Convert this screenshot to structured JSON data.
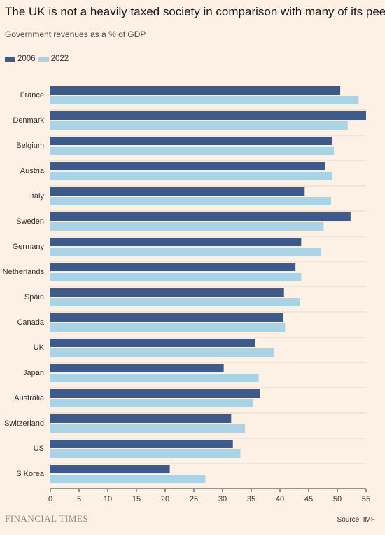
{
  "header": {
    "title": "The UK is not a heavily taxed society in comparison with many of its peers",
    "subtitle": "Government revenues as a % of GDP"
  },
  "footer": {
    "brand": "FINANCIAL TIMES",
    "source": "Source: IMF"
  },
  "colors": {
    "background": "#fdf1e6",
    "series_2006": "#3d5a8a",
    "series_2022": "#aad3e6",
    "grid": "#e2d9cf"
  },
  "chart_data": {
    "type": "bar",
    "orientation": "horizontal",
    "grid": true,
    "legend_position": "top-left",
    "xlim": [
      0,
      55
    ],
    "x_ticks": [
      0,
      5,
      10,
      15,
      20,
      25,
      30,
      35,
      40,
      45,
      50,
      55
    ],
    "categories": [
      "France",
      "Denmark",
      "Belgium",
      "Austria",
      "Italy",
      "Sweden",
      "Germany",
      "Netherlands",
      "Spain",
      "Canada",
      "UK",
      "Japan",
      "Australia",
      "Switzerland",
      "US",
      "S Korea"
    ],
    "series": [
      {
        "name": "2006",
        "color": "#3d5a8a",
        "values": [
          50.5,
          55.0,
          49.1,
          47.9,
          44.3,
          52.3,
          43.7,
          42.7,
          40.7,
          40.6,
          35.7,
          30.2,
          36.5,
          31.5,
          31.8,
          20.8
        ]
      },
      {
        "name": "2022",
        "color": "#aad3e6",
        "values": [
          53.7,
          51.8,
          49.4,
          49.1,
          48.9,
          47.6,
          47.2,
          43.7,
          43.5,
          40.9,
          39.0,
          36.3,
          35.3,
          33.9,
          33.1,
          27.0
        ]
      }
    ]
  }
}
